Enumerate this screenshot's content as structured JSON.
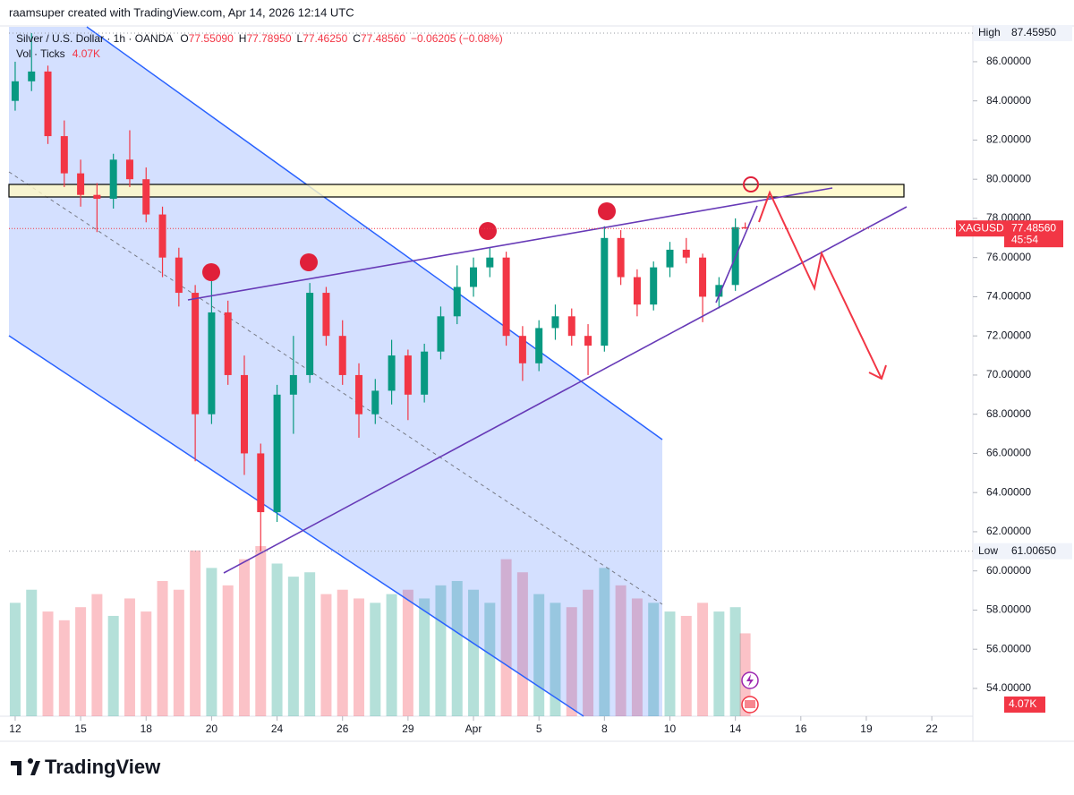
{
  "chart_data": {
    "type": "candlestick",
    "credit": "raamsuper created with TradingView.com, Apr 14, 2026 12:14 UTC",
    "brand": "TradingView",
    "header": {
      "symbol": "Silver / U.S. Dollar · 1h · OANDA",
      "open_label": "O",
      "open": "77.55090",
      "high_label": "H",
      "high": "77.78950",
      "low_label": "L",
      "low": "77.46250",
      "close_label": "C",
      "close": "77.48560",
      "change": "−0.06205 (−0.08%)"
    },
    "volume_header": {
      "label": "Vol · Ticks",
      "value": "4.07K"
    },
    "up_color": "#089981",
    "down_color": "#f23645",
    "candles": {
      "x": [
        0,
        0.5,
        1,
        1.5,
        2,
        2.5,
        3,
        3.5,
        4,
        4.5,
        5,
        5.5,
        6,
        6.5,
        7,
        7.5,
        8,
        8.5,
        9,
        9.5,
        10,
        10.5,
        11,
        11.5,
        12,
        12.5,
        13,
        13.5,
        14,
        14.5,
        15,
        15.5,
        16,
        16.5,
        17,
        17.5,
        18,
        18.5,
        19,
        19.5,
        20,
        20.5,
        21,
        21.5,
        22,
        22.3
      ],
      "open": [
        84.0,
        85.0,
        85.5,
        82.2,
        80.3,
        79.2,
        79.0,
        81.0,
        80.0,
        78.2,
        76.0,
        74.2,
        68.0,
        73.2,
        70.0,
        66.0,
        63.0,
        69.0,
        70.0,
        74.2,
        72.0,
        70.0,
        68.0,
        69.2,
        71.0,
        69.0,
        71.2,
        73.0,
        74.5,
        75.5,
        76.0,
        72.0,
        70.6,
        72.4,
        73.0,
        72.0,
        71.5,
        77.0,
        75.0,
        73.6,
        75.5,
        76.4,
        76.0,
        74.0,
        74.6,
        77.5509
      ],
      "high": [
        86.0,
        87.4595,
        85.8,
        83.0,
        81.0,
        79.8,
        81.3,
        82.5,
        80.6,
        78.6,
        76.5,
        74.6,
        74.8,
        73.8,
        71.0,
        66.5,
        69.5,
        72.0,
        74.7,
        74.5,
        72.8,
        70.6,
        69.8,
        71.8,
        71.3,
        71.6,
        73.5,
        75.6,
        76.0,
        76.5,
        76.3,
        72.5,
        72.8,
        73.6,
        73.4,
        72.6,
        77.6,
        77.4,
        75.4,
        75.8,
        76.8,
        77.0,
        76.2,
        75.0,
        78.0,
        77.7895
      ],
      "low": [
        83.5,
        84.5,
        81.8,
        79.6,
        78.6,
        77.3,
        78.5,
        79.6,
        77.8,
        75.0,
        73.5,
        65.6,
        67.5,
        69.5,
        64.9,
        61.0065,
        62.5,
        67.0,
        69.6,
        71.5,
        69.5,
        66.8,
        67.5,
        68.5,
        67.7,
        68.6,
        70.8,
        72.6,
        74.0,
        75.0,
        71.5,
        69.7,
        70.2,
        71.8,
        71.5,
        70.0,
        71.2,
        74.6,
        73.0,
        73.3,
        75.0,
        75.7,
        72.7,
        73.4,
        74.3,
        77.4625
      ],
      "close": [
        85.0,
        85.5,
        82.2,
        80.3,
        79.2,
        79.0,
        81.0,
        80.0,
        78.2,
        76.0,
        74.2,
        68.0,
        73.2,
        70.0,
        66.0,
        63.0,
        69.0,
        70.0,
        74.2,
        72.0,
        70.0,
        68.0,
        69.2,
        71.0,
        69.0,
        71.2,
        73.0,
        74.5,
        75.5,
        76.0,
        72.0,
        70.6,
        72.4,
        73.0,
        72.0,
        71.5,
        77.0,
        75.0,
        73.6,
        75.5,
        76.4,
        76.0,
        74.0,
        74.6,
        77.55,
        77.4856
      ],
      "volume": [
        2.6,
        2.9,
        2.4,
        2.2,
        2.5,
        2.8,
        2.3,
        2.7,
        2.4,
        3.1,
        2.9,
        3.8,
        3.4,
        3.0,
        3.6,
        3.9,
        3.5,
        3.2,
        3.3,
        2.8,
        2.9,
        2.7,
        2.6,
        2.8,
        2.9,
        2.7,
        3.0,
        3.1,
        2.9,
        2.6,
        3.6,
        3.3,
        2.8,
        2.6,
        2.5,
        2.9,
        3.4,
        3.0,
        2.7,
        2.6,
        2.4,
        2.3,
        2.6,
        2.4,
        2.5,
        1.9
      ]
    },
    "xlim": [
      -0.19,
      29.2
    ],
    "xticks": [
      {
        "value": 0,
        "label": "12"
      },
      {
        "value": 2,
        "label": "15"
      },
      {
        "value": 4,
        "label": "18"
      },
      {
        "value": 6,
        "label": "20"
      },
      {
        "value": 8,
        "label": "24"
      },
      {
        "value": 10,
        "label": "26"
      },
      {
        "value": 12,
        "label": "29"
      },
      {
        "value": 14,
        "label": "Apr"
      },
      {
        "value": 16,
        "label": "5"
      },
      {
        "value": 18,
        "label": "8"
      },
      {
        "value": 20,
        "label": "10"
      },
      {
        "value": 22,
        "label": "14"
      },
      {
        "value": 24,
        "label": "16"
      },
      {
        "value": 26,
        "label": "19"
      },
      {
        "value": 28,
        "label": "22"
      }
    ],
    "ylim": [
      52.58,
      87.78
    ],
    "yticks": [
      {
        "value": 54,
        "label": "54.00000"
      },
      {
        "value": 56,
        "label": "56.00000"
      },
      {
        "value": 58,
        "label": "58.00000"
      },
      {
        "value": 60,
        "label": "60.00000"
      },
      {
        "value": 62,
        "label": "62.00000"
      },
      {
        "value": 64,
        "label": "64.00000"
      },
      {
        "value": 66,
        "label": "66.00000"
      },
      {
        "value": 68,
        "label": "68.00000"
      },
      {
        "value": 70,
        "label": "70.00000"
      },
      {
        "value": 72,
        "label": "72.00000"
      },
      {
        "value": 74,
        "label": "74.00000"
      },
      {
        "value": 76,
        "label": "76.00000"
      },
      {
        "value": 78,
        "label": "78.00000"
      },
      {
        "value": 80,
        "label": "80.00000"
      },
      {
        "value": 82,
        "label": "82.00000"
      },
      {
        "value": 84,
        "label": "84.00000"
      },
      {
        "value": 86,
        "label": "86.00000"
      }
    ],
    "price_tags": [
      {
        "name": "High",
        "value": 87.4595,
        "label": "87.45950"
      },
      {
        "name": "Low",
        "value": 61.0065,
        "label": "61.00650"
      }
    ],
    "last_price": {
      "name": "XAGUSD",
      "value": 77.4856,
      "label": "77.48560",
      "countdown": "45:54"
    },
    "volume_tag": "4.07K"
  }
}
